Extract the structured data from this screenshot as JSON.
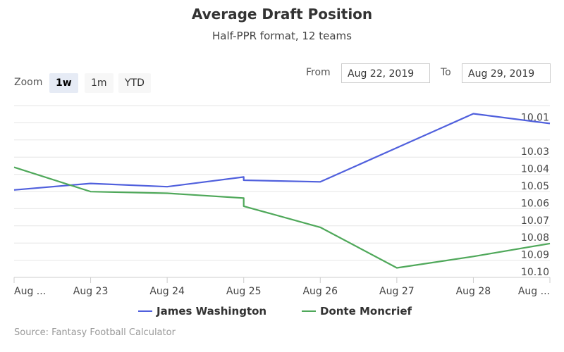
{
  "header": {
    "title": "Average Draft Position",
    "subtitle": "Half-PPR format, 12 teams"
  },
  "zoom": {
    "label": "Zoom",
    "buttons": [
      {
        "label": "1w",
        "active": true
      },
      {
        "label": "1m",
        "active": false
      },
      {
        "label": "YTD",
        "active": false
      }
    ]
  },
  "range": {
    "from_label": "From",
    "from_value": "Aug 22, 2019",
    "to_label": "To",
    "to_value": "Aug 29, 2019"
  },
  "source": "Source: Fantasy Football Calculator",
  "chart_data": {
    "type": "line",
    "title": "Average Draft Position",
    "subtitle": "Half-PPR format, 12 teams",
    "x_tick_labels": [
      "Aug ...",
      "Aug 23",
      "Aug 24",
      "Aug 25",
      "Aug 26",
      "Aug 27",
      "Aug 28",
      "Aug ..."
    ],
    "y_tick_labels": [
      "10.01",
      "10.03",
      "10.04",
      "10.05",
      "10.06",
      "10.07",
      "10.08",
      "10.09",
      "10.10"
    ],
    "y_reversed": true,
    "ylim": [
      10.0,
      10.105
    ],
    "xlim": [
      "2019-08-22",
      "2019-08-29"
    ],
    "grid": true,
    "legend_position": "bottom",
    "series": [
      {
        "name": "James Washington",
        "color": "#5060dd",
        "points": [
          {
            "x": "2019-08-22",
            "y": 10.052
          },
          {
            "x": "2019-08-23",
            "y": 10.048
          },
          {
            "x": "2019-08-24",
            "y": 10.05
          },
          {
            "x": "2019-08-25",
            "y": 10.044
          },
          {
            "x": "2019-08-25",
            "y": 10.046
          },
          {
            "x": "2019-08-26",
            "y": 10.047
          },
          {
            "x": "2019-08-27",
            "y": 10.026
          },
          {
            "x": "2019-08-28",
            "y": 10.005
          },
          {
            "x": "2019-08-29",
            "y": 10.011
          }
        ]
      },
      {
        "name": "Donte Moncrief",
        "color": "#4fa85a",
        "points": [
          {
            "x": "2019-08-22",
            "y": 10.038
          },
          {
            "x": "2019-08-23",
            "y": 10.053
          },
          {
            "x": "2019-08-24",
            "y": 10.054
          },
          {
            "x": "2019-08-25",
            "y": 10.057
          },
          {
            "x": "2019-08-25",
            "y": 10.062
          },
          {
            "x": "2019-08-26",
            "y": 10.075
          },
          {
            "x": "2019-08-27",
            "y": 10.1
          },
          {
            "x": "2019-08-28",
            "y": 10.093
          },
          {
            "x": "2019-08-29",
            "y": 10.085
          }
        ]
      }
    ]
  }
}
